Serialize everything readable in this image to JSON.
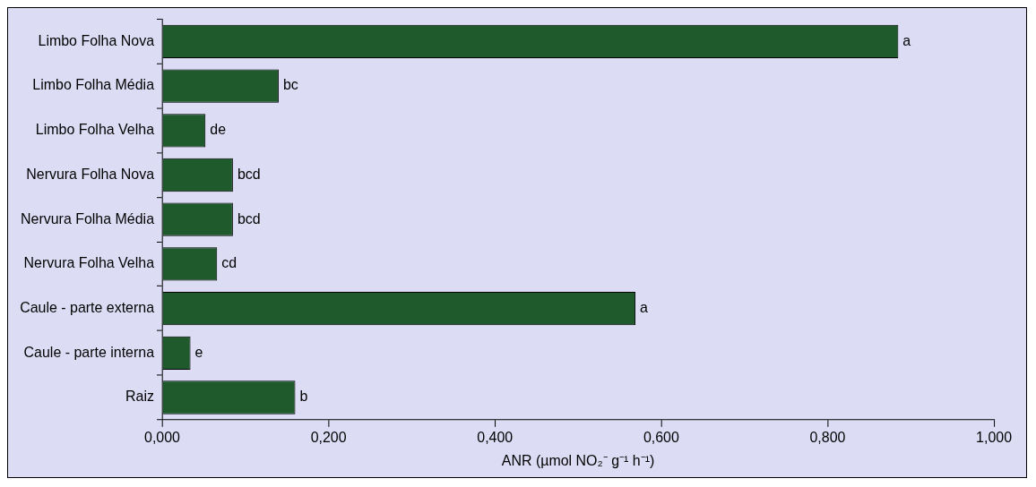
{
  "chart_data": {
    "type": "bar",
    "orientation": "horizontal",
    "xlabel": "ANR (µmol NO₂⁻ g⁻¹ h⁻¹)",
    "categories": [
      "Limbo Folha Nova",
      "Limbo Folha Média",
      "Limbo Folha Velha",
      "Nervura Folha Nova",
      "Nervura Folha Média",
      "Nervura Folha Velha",
      "Caule - parte externa",
      "Caule - parte interna",
      "Raiz"
    ],
    "values": [
      0.885,
      0.14,
      0.052,
      0.085,
      0.085,
      0.066,
      0.569,
      0.034,
      0.16
    ],
    "color": "#1f5a2c",
    "xlim": [
      0,
      1
    ],
    "xticks": [
      {
        "value": 0,
        "label": "0,000"
      },
      {
        "value": 0.2,
        "label": "0,200"
      },
      {
        "value": 0.4,
        "label": "0,400"
      },
      {
        "value": 0.6,
        "label": "0,600"
      },
      {
        "value": 0.8,
        "label": "0,800"
      },
      {
        "value": 1,
        "label": "1,000"
      }
    ],
    "annotations": [
      {
        "text": "a",
        "x": 0.885,
        "y": "Limbo Folha Nova"
      },
      {
        "text": "bc",
        "x": 0.14,
        "y": "Limbo Folha Média"
      },
      {
        "text": "de",
        "x": 0.052,
        "y": "Limbo Folha Velha"
      },
      {
        "text": "bcd",
        "x": 0.085,
        "y": "Nervura Folha Nova"
      },
      {
        "text": "bcd",
        "x": 0.085,
        "y": "Nervura Folha Média"
      },
      {
        "text": "cd",
        "x": 0.066,
        "y": "Nervura Folha Velha"
      },
      {
        "text": "a",
        "x": 0.569,
        "y": "Caule - parte externa"
      },
      {
        "text": "e",
        "x": 0.034,
        "y": "Caule - parte interna"
      },
      {
        "text": "b",
        "x": 0.16,
        "y": "Raiz"
      }
    ],
    "grid": false,
    "legend": false
  }
}
